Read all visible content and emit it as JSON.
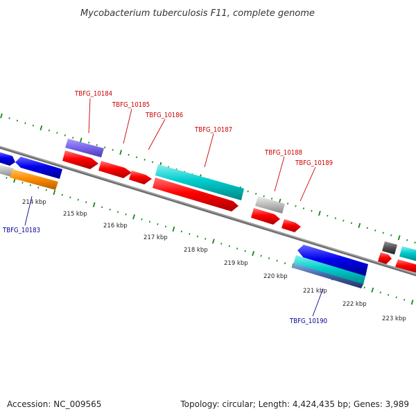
{
  "title": "Mycobacterium tuberculosis F11, complete genome",
  "footer": {
    "accession": "Accession: NC_009565",
    "summary": "Topology: circular; Length: 4,424,435 bp; Genes: 3,989"
  },
  "scale": {
    "labels": [
      "214 kbp",
      "215 kbp",
      "216 kbp",
      "217 kbp",
      "218 kbp",
      "219 kbp",
      "220 kbp",
      "221 kbp",
      "222 kbp",
      "223 kbp"
    ]
  },
  "gene_labels": [
    {
      "text": "TBFG_10183",
      "strand": "reverse"
    },
    {
      "text": "TBFG_10184",
      "strand": "forward"
    },
    {
      "text": "TBFG_10185",
      "strand": "forward"
    },
    {
      "text": "TBFG_10186",
      "strand": "forward"
    },
    {
      "text": "TBFG_10187",
      "strand": "forward"
    },
    {
      "text": "TBFG_10188",
      "strand": "forward"
    },
    {
      "text": "TBFG_10189",
      "strand": "forward"
    },
    {
      "text": "TBFG_10190",
      "strand": "reverse"
    }
  ],
  "colors": {
    "forward_label": "#cc0000",
    "reverse_label": "#000099",
    "cds": "#ff0000",
    "gene_blue": "#0000ee",
    "gene_cyan": "#00cccc",
    "gene_purple": "#7b68ee",
    "gene_orange": "#ff8c00",
    "gene_gray": "#c0c0c0",
    "gene_dark": "#555555",
    "backbone": "#888888",
    "ticks": "#118811"
  }
}
